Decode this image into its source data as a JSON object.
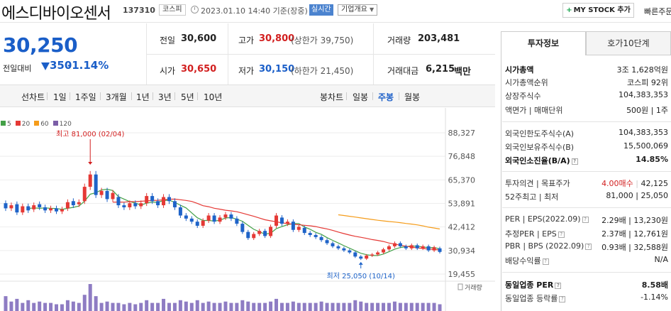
{
  "header": {
    "stock_name": "에스디바이오센서",
    "stock_code": "137310",
    "market": "코스피",
    "datetime": "2023.01.10 14:40 기준(장중)",
    "realtime": "실시간",
    "company_overview": "기업개요",
    "mystock": "MY STOCK 추가",
    "quick_order": "빠른주문"
  },
  "price": {
    "current": "30,250",
    "change_label": "전일대비",
    "change": "350",
    "change_pct": "-1.14%"
  },
  "quote": {
    "prev_close_label": "전일",
    "prev_close": "30,600",
    "high_label": "고가",
    "high": "30,800",
    "upper_limit": "(상한가 39,750)",
    "volume_label": "거래량",
    "volume": "203,481",
    "open_label": "시가",
    "open": "30,650",
    "low_label": "저가",
    "low": "30,150",
    "lower_limit": "(하한가 21,450)",
    "amount_label": "거래대금",
    "amount": "6,215",
    "amount_unit": "백만"
  },
  "chart_tabs": {
    "line_label": "선차트",
    "periods": [
      "1일",
      "1주일",
      "3개월",
      "1년",
      "3년",
      "5년",
      "10년"
    ],
    "candle_label": "봉차트",
    "candles": [
      "일봉",
      "주봉",
      "월봉"
    ],
    "selected_candle": "주봉"
  },
  "chart_data": {
    "type": "candlestick",
    "legend": [
      {
        "name": "5",
        "color": "#43a047"
      },
      {
        "name": "20",
        "color": "#e53935"
      },
      {
        "name": "60",
        "color": "#f59c1a"
      },
      {
        "name": "120",
        "color": "#7b5ea7"
      }
    ],
    "y_ticks": [
      "88,327",
      "76,848",
      "65,370",
      "53,891",
      "42,412",
      "30,934",
      "19,455"
    ],
    "ylim": [
      19455,
      88327
    ],
    "annotations": {
      "high": "최고 81,000 (02/04)",
      "low": "최저 25,050 (10/14)"
    },
    "volume_label": "거래량",
    "candles": [
      {
        "o": 54000,
        "c": 51500
      },
      {
        "o": 51500,
        "c": 53000
      },
      {
        "o": 53500,
        "c": 49500
      },
      {
        "o": 49500,
        "c": 52500
      },
      {
        "o": 52500,
        "c": 50500
      },
      {
        "o": 51000,
        "c": 53000
      },
      {
        "o": 53500,
        "c": 52000
      },
      {
        "o": 52000,
        "c": 50500
      },
      {
        "o": 50500,
        "c": 51500
      },
      {
        "o": 51500,
        "c": 50000
      },
      {
        "o": 50000,
        "c": 51000
      },
      {
        "o": 51500,
        "c": 54500
      },
      {
        "o": 55000,
        "c": 53000
      },
      {
        "o": 53500,
        "c": 54500
      },
      {
        "o": 55000,
        "c": 62000
      },
      {
        "o": 62000,
        "c": 68000
      },
      {
        "o": 68000,
        "c": 58000
      },
      {
        "o": 58000,
        "c": 60000
      },
      {
        "o": 60000,
        "c": 56000
      },
      {
        "o": 56000,
        "c": 59000
      },
      {
        "o": 57000,
        "c": 53000
      },
      {
        "o": 53000,
        "c": 52000
      },
      {
        "o": 52000,
        "c": 54000
      },
      {
        "o": 54000,
        "c": 52500
      },
      {
        "o": 52500,
        "c": 54000
      },
      {
        "o": 54000,
        "c": 57500
      },
      {
        "o": 57500,
        "c": 55000
      },
      {
        "o": 55000,
        "c": 53000
      },
      {
        "o": 53000,
        "c": 57000
      },
      {
        "o": 57000,
        "c": 55000
      },
      {
        "o": 55000,
        "c": 52000
      },
      {
        "o": 52000,
        "c": 48000
      },
      {
        "o": 48000,
        "c": 46500
      },
      {
        "o": 46500,
        "c": 45000
      },
      {
        "o": 45000,
        "c": 43000
      },
      {
        "o": 43000,
        "c": 45500
      },
      {
        "o": 45500,
        "c": 48000
      },
      {
        "o": 48000,
        "c": 45000
      },
      {
        "o": 45000,
        "c": 47000
      },
      {
        "o": 47000,
        "c": 48500
      },
      {
        "o": 48500,
        "c": 46500
      },
      {
        "o": 46500,
        "c": 44000
      },
      {
        "o": 44000,
        "c": 40000
      },
      {
        "o": 40000,
        "c": 37000
      },
      {
        "o": 37000,
        "c": 39000
      },
      {
        "o": 39000,
        "c": 40500
      },
      {
        "o": 40500,
        "c": 38000
      },
      {
        "o": 38000,
        "c": 42500
      },
      {
        "o": 43000,
        "c": 48000
      },
      {
        "o": 47000,
        "c": 44000
      },
      {
        "o": 44000,
        "c": 45000
      },
      {
        "o": 45000,
        "c": 41000
      },
      {
        "o": 41000,
        "c": 42500
      },
      {
        "o": 42000,
        "c": 39500
      },
      {
        "o": 39500,
        "c": 38500
      },
      {
        "o": 38500,
        "c": 37500
      },
      {
        "o": 37500,
        "c": 36000
      },
      {
        "o": 36000,
        "c": 34500
      },
      {
        "o": 34500,
        "c": 33000
      },
      {
        "o": 33000,
        "c": 32000
      },
      {
        "o": 32000,
        "c": 31000
      },
      {
        "o": 31000,
        "c": 30000
      },
      {
        "o": 30000,
        "c": 28000
      },
      {
        "o": 28000,
        "c": 27000
      },
      {
        "o": 27000,
        "c": 28500
      },
      {
        "o": 28500,
        "c": 29000
      },
      {
        "o": 29000,
        "c": 30000
      },
      {
        "o": 30000,
        "c": 31500
      },
      {
        "o": 31500,
        "c": 33000
      },
      {
        "o": 33000,
        "c": 34500
      },
      {
        "o": 34500,
        "c": 33000
      },
      {
        "o": 33000,
        "c": 32000
      },
      {
        "o": 32000,
        "c": 33500
      },
      {
        "o": 33500,
        "c": 32000
      },
      {
        "o": 32000,
        "c": 33000
      },
      {
        "o": 33000,
        "c": 31000
      },
      {
        "o": 31000,
        "c": 32500
      },
      {
        "o": 32000,
        "c": 30250
      }
    ],
    "volumes": [
      0.55,
      0.35,
      0.45,
      0.3,
      0.4,
      0.3,
      0.35,
      0.3,
      0.3,
      0.25,
      0.25,
      0.4,
      0.35,
      0.3,
      0.6,
      1.0,
      0.55,
      0.3,
      0.35,
      0.3,
      0.3,
      0.25,
      0.3,
      0.25,
      0.3,
      0.4,
      0.3,
      0.3,
      0.45,
      0.3,
      0.3,
      0.4,
      0.35,
      0.3,
      0.4,
      0.3,
      0.35,
      0.3,
      0.3,
      0.35,
      0.3,
      0.3,
      0.4,
      0.35,
      0.3,
      0.3,
      0.3,
      0.35,
      0.45,
      0.3,
      0.3,
      0.35,
      0.3,
      0.3,
      0.3,
      0.3,
      0.35,
      0.3,
      0.3,
      0.3,
      0.3,
      0.3,
      0.4,
      0.35,
      0.3,
      0.3,
      0.3,
      0.3,
      0.3,
      0.35,
      0.3,
      0.3,
      0.3,
      0.3,
      0.3,
      0.3,
      0.3,
      0.25
    ]
  },
  "panel": {
    "tab_invest": "투자정보",
    "tab_hoga": "호가10단계",
    "market_cap_label": "시가총액",
    "market_cap": "3조 1,628억원",
    "cap_rank_label": "시가총액순위",
    "cap_rank": "코스피 92위",
    "listed_shares_label": "상장주식수",
    "listed_shares": "104,383,353",
    "par_label": "액면가 | 매매단위",
    "par_value": "500원 | 1주",
    "foreign_limit_label": "외국인한도주식수(A)",
    "foreign_limit": "104,383,353",
    "foreign_hold_label": "외국인보유주식수(B)",
    "foreign_hold": "15,500,069",
    "foreign_ratio_label": "외국인소진율(B/A)",
    "foreign_ratio": "14.85%",
    "opinion_label": "투자의견 | 목표주가",
    "opinion": "4.00매수",
    "target_price": "42,125",
    "week52_label": "52주최고 | 최저",
    "week52": "81,000 | 25,050",
    "per_label": "PER | EPS(2022.09)",
    "per_val": "2.29배 | 13,230원",
    "est_per_label": "추정PER | EPS",
    "est_per_val": "2.37배 | 12,761원",
    "pbr_label": "PBR | BPS (2022.09)",
    "pbr_val": "0.93배 | 32,588원",
    "dividend_label": "배당수익률",
    "dividend": "N/A",
    "industry_per_label": "동일업종 PER",
    "industry_per": "8.58배",
    "industry_rate_label": "동일업종 등락률",
    "industry_rate": "-1.14%"
  }
}
